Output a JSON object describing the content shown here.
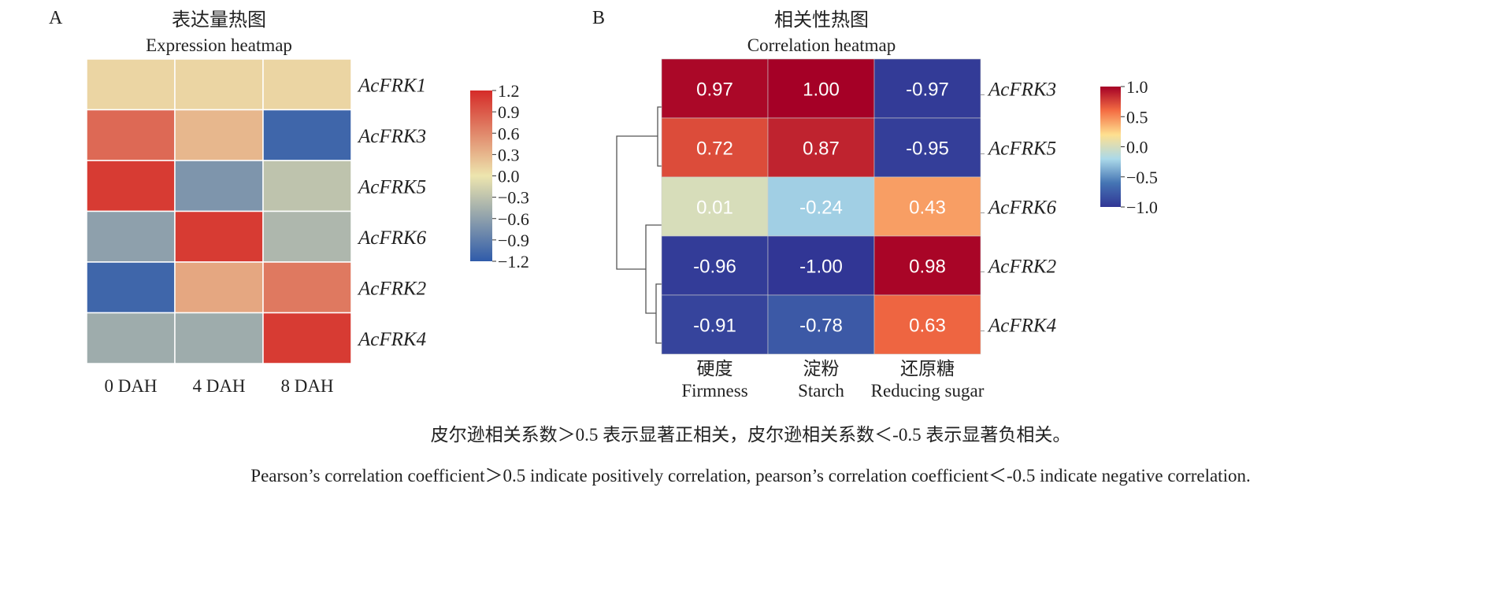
{
  "chart_data": [
    {
      "type": "heatmap",
      "panel_label": "A",
      "title": "表达量热图",
      "subtitle": "Expression heatmap",
      "rows": [
        "AcFRK1",
        "AcFRK3",
        "AcFRK5",
        "AcFRK6",
        "AcFRK2",
        "AcFRK4"
      ],
      "columns": [
        "0 DAH",
        "4 DAH",
        "8 DAH"
      ],
      "values": [
        [
          0.1,
          0.1,
          0.1
        ],
        [
          0.8,
          0.3,
          -1.1
        ],
        [
          1.1,
          -0.7,
          -0.3
        ],
        [
          -0.6,
          1.1,
          -0.4
        ],
        [
          -1.1,
          0.4,
          0.7
        ],
        [
          -0.5,
          -0.5,
          1.1
        ]
      ],
      "colorbar": {
        "range": [
          -1.2,
          1.2
        ],
        "ticks": [
          "1.2",
          "0.9",
          "0.6",
          "0.3",
          "0.0",
          "−0.3",
          "−0.6",
          "−0.9",
          "−1.2"
        ],
        "tick_values": [
          1.2,
          0.9,
          0.6,
          0.3,
          0.0,
          -0.3,
          -0.6,
          -0.9,
          -1.2
        ],
        "colors": [
          "#2F5BAA",
          "#EDE5AE",
          "#D52B28"
        ]
      }
    },
    {
      "type": "heatmap",
      "panel_label": "B",
      "title": "相关性热图",
      "subtitle": "Correlation heatmap",
      "rows": [
        "AcFRK3",
        "AcFRK5",
        "AcFRK6",
        "AcFRK2",
        "AcFRK4"
      ],
      "columns_cn": [
        "硬度",
        "淀粉",
        "还原糖"
      ],
      "columns": [
        "Firmness",
        "Starch",
        "Reducing sugar"
      ],
      "values": [
        [
          0.97,
          1.0,
          -0.97
        ],
        [
          0.72,
          0.87,
          -0.95
        ],
        [
          0.01,
          -0.24,
          0.43
        ],
        [
          -0.96,
          -1.0,
          0.98
        ],
        [
          -0.91,
          -0.78,
          0.63
        ]
      ],
      "labels": [
        [
          "0.97",
          "1.00",
          "-0.97"
        ],
        [
          "0.72",
          "0.87",
          "-0.95"
        ],
        [
          "0.01",
          "-0.24",
          "0.43"
        ],
        [
          "-0.96",
          "-1.00",
          "0.98"
        ],
        [
          "-0.91",
          "-0.78",
          "0.63"
        ]
      ],
      "dendrogram": "rows clustered: ((AcFRK3, AcFRK5), (AcFRK6, (AcFRK2, AcFRK4)))",
      "colorbar": {
        "range": [
          -1.0,
          1.0
        ],
        "ticks": [
          "1.0",
          "0.5",
          "0.0",
          "−0.5",
          "−1.0"
        ],
        "tick_values": [
          1.0,
          0.5,
          0.0,
          -0.5,
          -1.0
        ],
        "colors": [
          "#313695",
          "#4575B4",
          "#ABD9E9",
          "#FEE090",
          "#F46D43",
          "#A50026"
        ]
      }
    }
  ],
  "caption": {
    "cn": "皮尔逊相关系数＞0.5 表示显著正相关，皮尔逊相关系数＜-0.5 表示显著负相关。",
    "en": "Pearson’s correlation coefficient＞0.5 indicate positively correlation, pearson’s correlation coefficient＜-0.5 indicate negative correlation."
  }
}
